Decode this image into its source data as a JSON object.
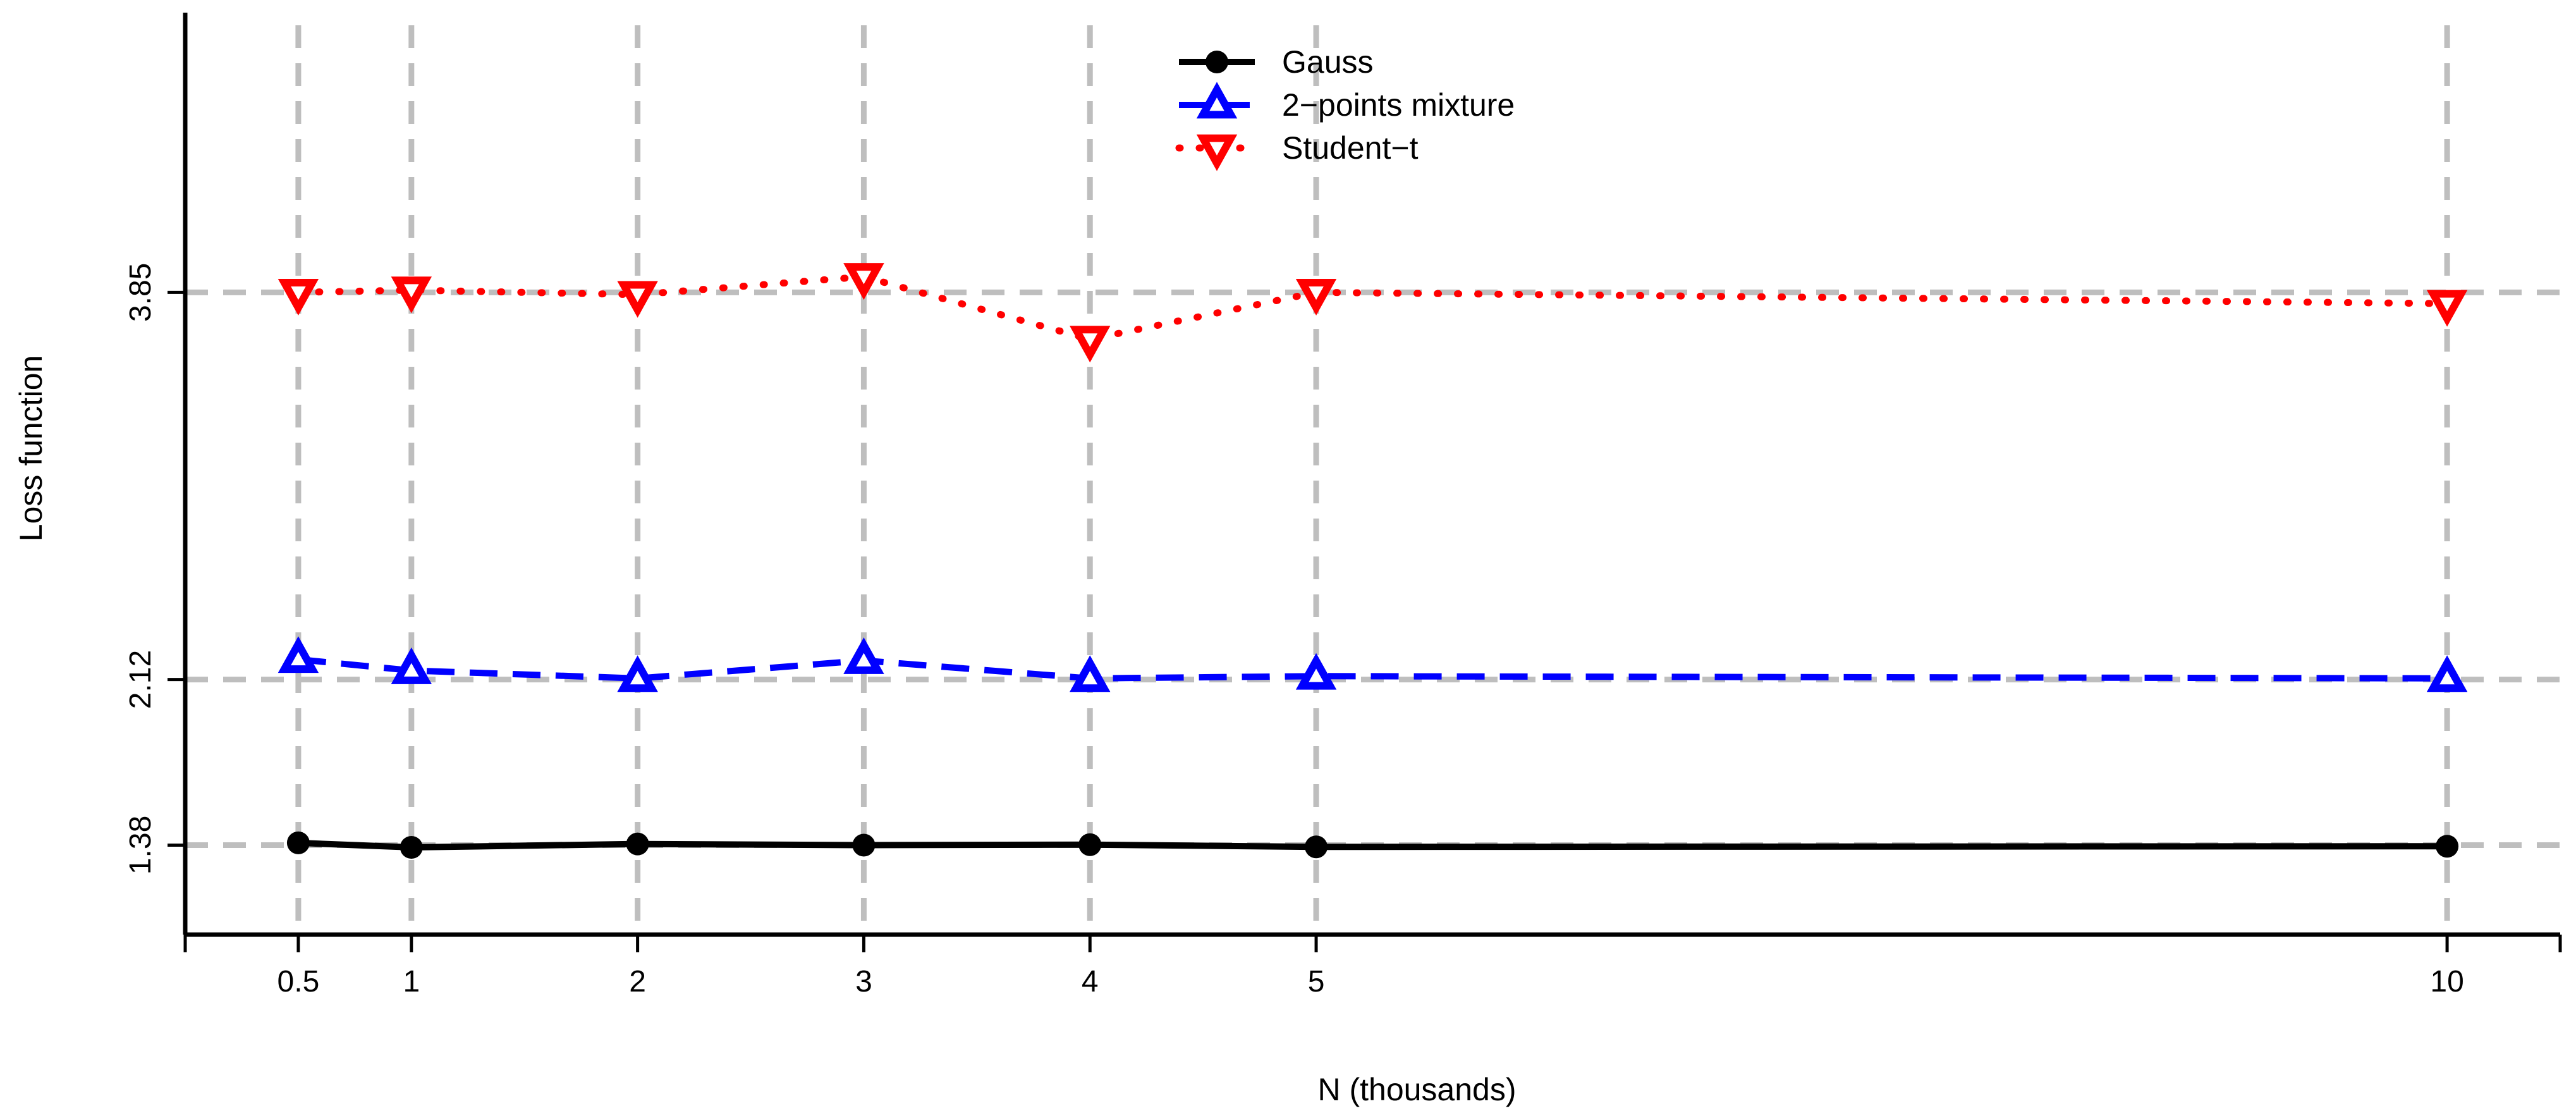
{
  "chart_data": {
    "type": "line",
    "xlabel": "N (thousands)",
    "ylabel": "Loss function",
    "x": [
      0.5,
      1,
      2,
      3,
      4,
      5,
      10
    ],
    "x_tick_labels": [
      "0.5",
      "1",
      "2",
      "3",
      "4",
      "5",
      "10"
    ],
    "y_ticks": [
      1.38,
      2.12,
      3.85
    ],
    "y_tick_labels": [
      "1.38",
      "2.12",
      "3.85"
    ],
    "xlim": [
      0,
      10.5
    ],
    "ylim": [
      0.98,
      5.1
    ],
    "grid": true,
    "legend_position": "top-center",
    "series": [
      {
        "name": "Gauss",
        "values": [
          1.39,
          1.37,
          1.385,
          1.38,
          1.382,
          1.372,
          1.375
        ],
        "color": "#000000",
        "line_style": "solid",
        "marker": "circle"
      },
      {
        "name": "2−points mixture",
        "values": [
          2.21,
          2.16,
          2.125,
          2.205,
          2.125,
          2.135,
          2.125
        ],
        "color": "#0000ff",
        "line_style": "dashed",
        "marker": "triangle-up"
      },
      {
        "name": "Student−t",
        "values": [
          3.85,
          3.86,
          3.84,
          3.92,
          3.64,
          3.85,
          3.8
        ],
        "color": "#ff0000",
        "line_style": "dotted",
        "marker": "triangle-down"
      }
    ]
  }
}
